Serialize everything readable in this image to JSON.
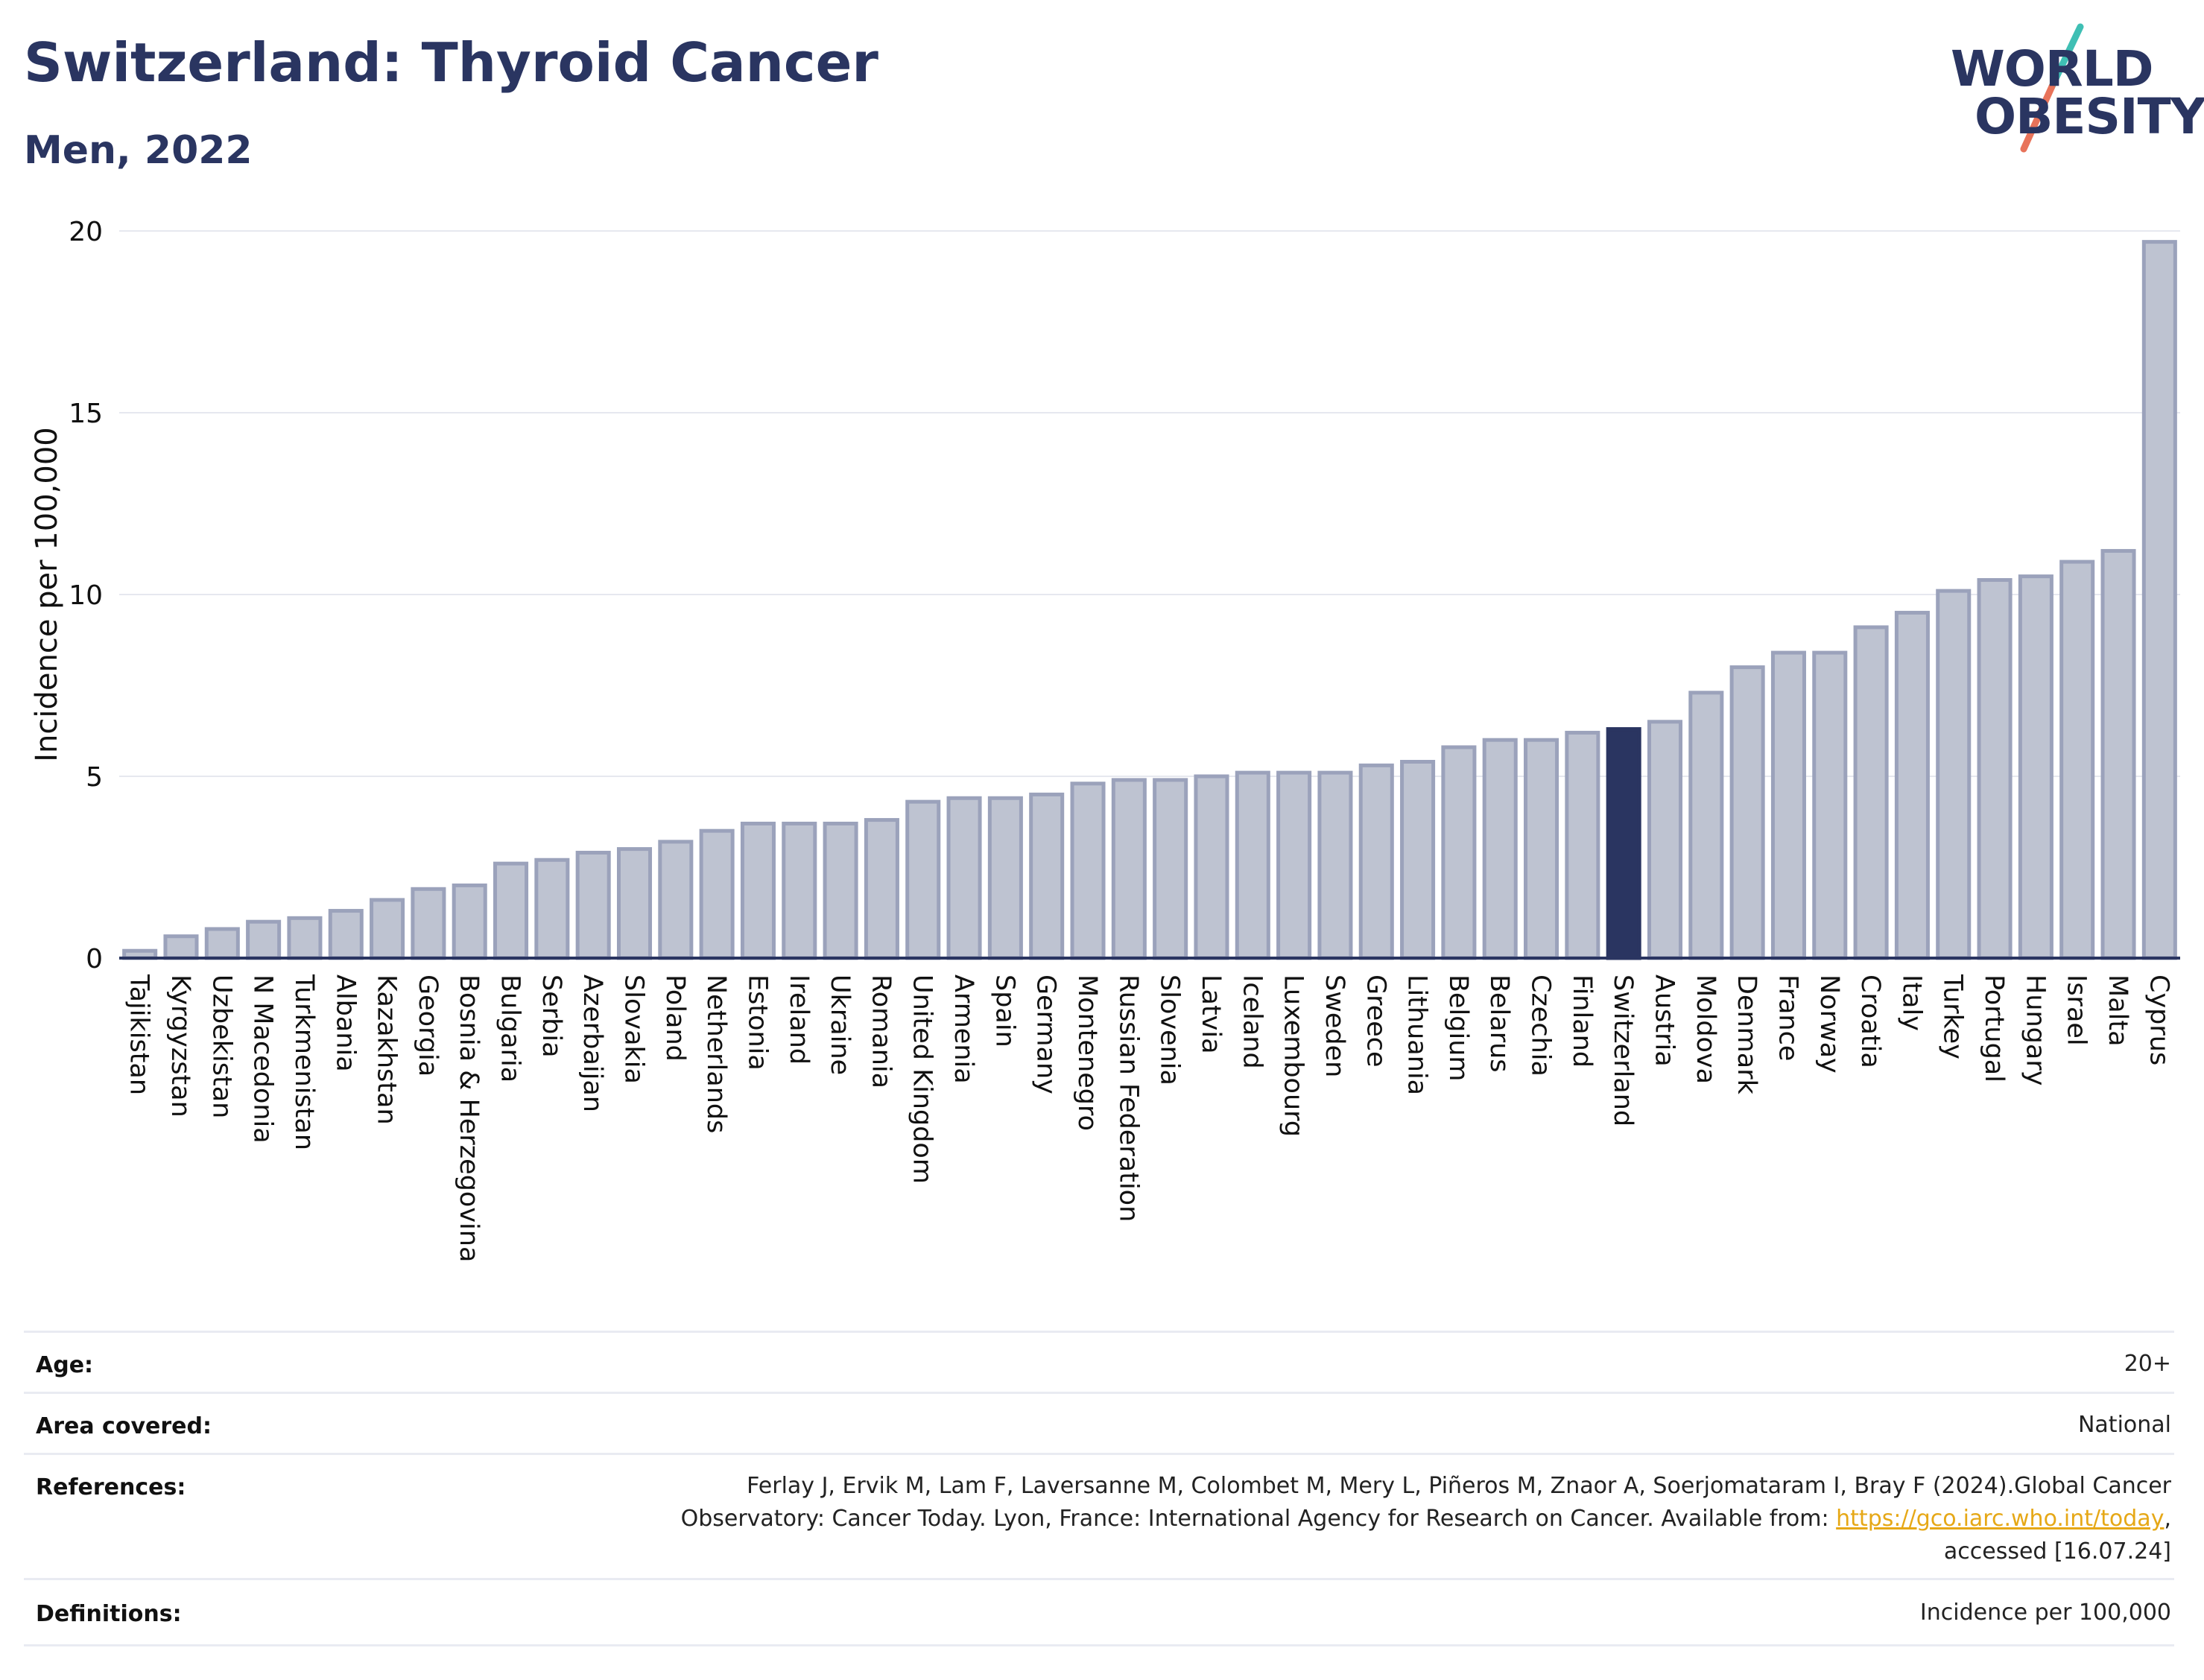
{
  "header": {
    "title": "Switzerland: Thyroid Cancer",
    "subtitle": "Men, 2022"
  },
  "logo": {
    "line1": "WORLD",
    "line2": "OBESITY",
    "accent_colors": [
      "#3fbfb4",
      "#e8735a"
    ]
  },
  "colors": {
    "bar_default": "#bec3d1",
    "bar_border": "#9ba2bb",
    "bar_highlight": "#2a3561",
    "title": "#2a3561",
    "grid": "#e6e8ef"
  },
  "chart_data": {
    "type": "bar",
    "title": "Switzerland: Thyroid Cancer",
    "subtitle": "Men, 2022",
    "xlabel": "",
    "ylabel": "Incidence per 100,000",
    "ylim": [
      0,
      20
    ],
    "yticks": [
      0,
      5,
      10,
      15,
      20
    ],
    "grid": true,
    "highlight": "Switzerland",
    "categories": [
      "Tajikistan",
      "Kyrgyzstan",
      "Uzbekistan",
      "N Macedonia",
      "Turkmenistan",
      "Albania",
      "Kazakhstan",
      "Georgia",
      "Bosnia & Herzegovina",
      "Bulgaria",
      "Serbia",
      "Azerbaijan",
      "Slovakia",
      "Poland",
      "Netherlands",
      "Estonia",
      "Ireland",
      "Ukraine",
      "Romania",
      "United Kingdom",
      "Armenia",
      "Spain",
      "Germany",
      "Montenegro",
      "Russian Federation",
      "Slovenia",
      "Latvia",
      "Iceland",
      "Luxembourg",
      "Sweden",
      "Greece",
      "Lithuania",
      "Belgium",
      "Belarus",
      "Czechia",
      "Finland",
      "Switzerland",
      "Austria",
      "Moldova",
      "Denmark",
      "France",
      "Norway",
      "Croatia",
      "Italy",
      "Turkey",
      "Portugal",
      "Hungary",
      "Israel",
      "Malta",
      "Cyprus"
    ],
    "values": [
      0.2,
      0.6,
      0.8,
      1.0,
      1.1,
      1.3,
      1.6,
      1.9,
      2.0,
      2.6,
      2.7,
      2.9,
      3.0,
      3.2,
      3.5,
      3.7,
      3.7,
      3.7,
      3.8,
      4.3,
      4.4,
      4.4,
      4.5,
      4.8,
      4.9,
      4.9,
      5.0,
      5.1,
      5.1,
      5.1,
      5.3,
      5.4,
      5.8,
      6.0,
      6.0,
      6.2,
      6.3,
      6.5,
      7.3,
      8.0,
      8.4,
      8.4,
      9.1,
      9.5,
      10.1,
      10.4,
      10.5,
      10.9,
      11.2,
      19.7
    ]
  },
  "meta": {
    "age_label": "Age:",
    "age_value": "20+",
    "area_label": "Area covered:",
    "area_value": "National",
    "references_label": "References:",
    "references_text_1": "Ferlay J, Ervik M, Lam F, Laversanne M, Colombet M, Mery L, Piñeros M, Znaor A, Soerjomataram I, Bray F (2024).Global Cancer",
    "references_text_2": "Observatory: Cancer Today. Lyon, France: International Agency for Research on Cancer. Available from: ",
    "references_link": "https://gco.iarc.who.int/today",
    "references_text_3": "accessed [16.07.24]",
    "definitions_label": "Definitions:",
    "definitions_value": "Incidence per 100,000"
  }
}
